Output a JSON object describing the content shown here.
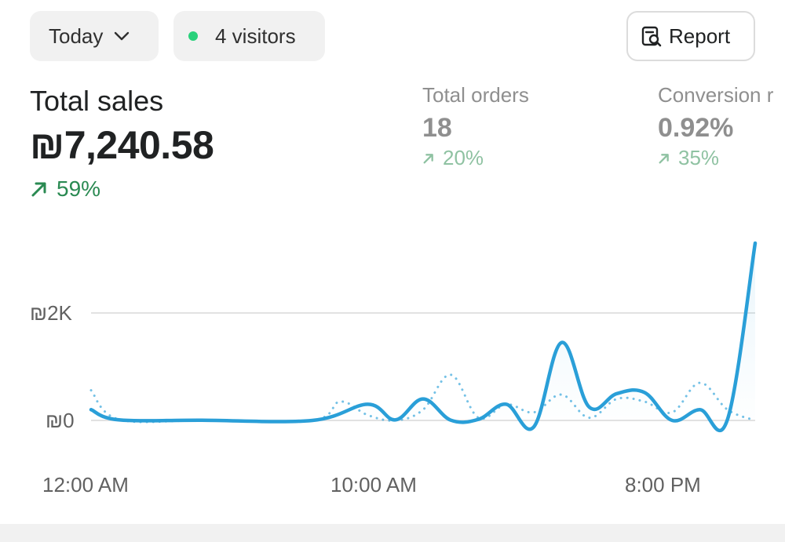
{
  "filters": {
    "date_label": "Today",
    "visitors_label": "4 visitors",
    "visitors_dot_color": "#29d17b"
  },
  "report_button": {
    "label": "Report",
    "icon": "report-search-icon"
  },
  "metrics": {
    "total_sales": {
      "title": "Total sales",
      "value": "₪7,240.58",
      "change": "59%",
      "trend": "up"
    },
    "total_orders": {
      "title": "Total orders",
      "value": "18",
      "change": "20%",
      "trend": "up"
    },
    "conversion": {
      "title": "Conversion r",
      "value": "0.92%",
      "change": "35%",
      "trend": "up"
    }
  },
  "colors": {
    "positive": "#2a8a52",
    "positive_muted": "#8fc2a2",
    "line": "#2a9fd8"
  },
  "chart_data": {
    "type": "line",
    "x_tick_labels": [
      "12:00 AM",
      "10:00 AM",
      "8:00 PM"
    ],
    "y_tick_labels": [
      "₪0",
      "₪2K"
    ],
    "ylim": [
      0,
      2000
    ],
    "grid": true,
    "series": [
      {
        "style": "solid",
        "points": [
          [
            0,
            200
          ],
          [
            1,
            10
          ],
          [
            4,
            5
          ],
          [
            8,
            0
          ],
          [
            10,
            300
          ],
          [
            11,
            10
          ],
          [
            12,
            400
          ],
          [
            13,
            5
          ],
          [
            14,
            20
          ],
          [
            15,
            300
          ],
          [
            16,
            -120
          ],
          [
            17,
            1450
          ],
          [
            18,
            250
          ],
          [
            19,
            500
          ],
          [
            20,
            520
          ],
          [
            21,
            0
          ],
          [
            22,
            200
          ],
          [
            23,
            20
          ],
          [
            24,
            3300
          ]
        ]
      },
      {
        "style": "dotted",
        "points": [
          [
            0,
            560
          ],
          [
            1,
            20
          ],
          [
            4,
            0
          ],
          [
            8,
            0
          ],
          [
            9,
            350
          ],
          [
            10,
            100
          ],
          [
            11,
            0
          ],
          [
            12,
            200
          ],
          [
            13,
            850
          ],
          [
            14,
            50
          ],
          [
            15,
            300
          ],
          [
            16,
            150
          ],
          [
            17,
            480
          ],
          [
            18,
            50
          ],
          [
            19,
            400
          ],
          [
            20,
            350
          ],
          [
            21,
            150
          ],
          [
            22,
            700
          ],
          [
            23,
            200
          ],
          [
            24,
            0
          ]
        ]
      }
    ]
  }
}
